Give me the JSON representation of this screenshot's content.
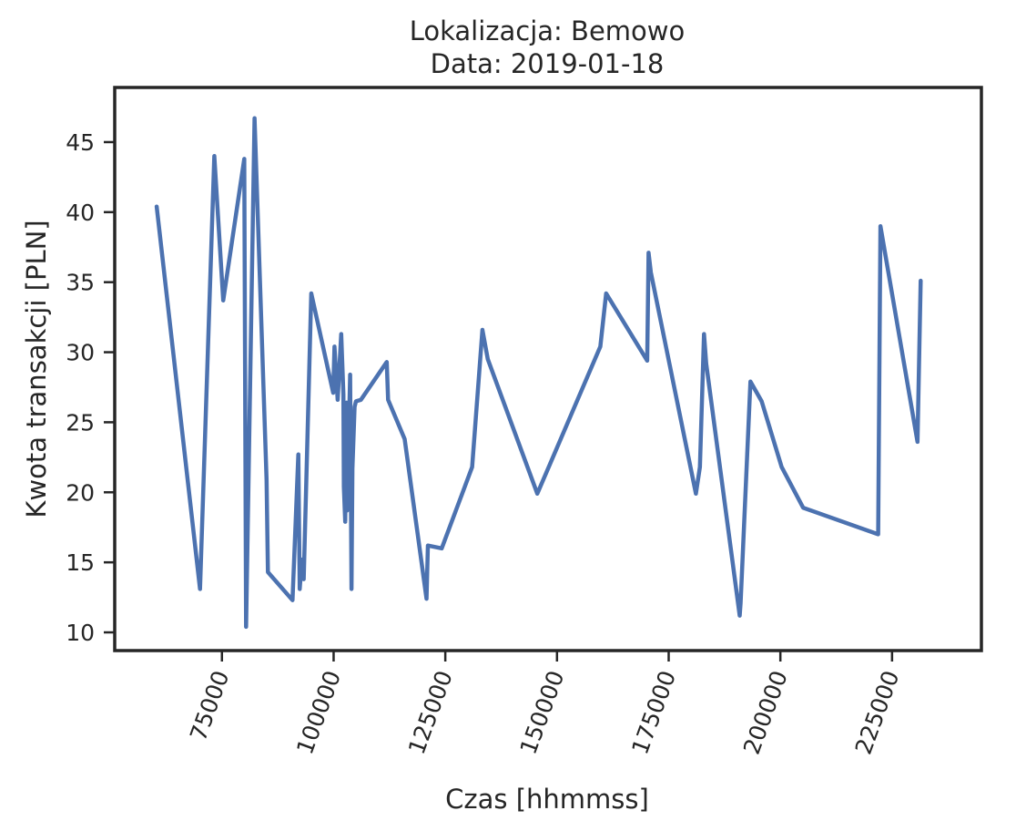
{
  "chart_data": {
    "type": "line",
    "title": "Lokalizacja: Bemowo",
    "subtitle": "Data: 2019-01-18",
    "xlabel": "Czas [hhmmss]",
    "ylabel": "Kwota transakcji [PLN]",
    "xlim": [
      51000,
      245000
    ],
    "ylim": [
      8.7,
      48.9
    ],
    "xticks": [
      75000,
      100000,
      125000,
      150000,
      175000,
      200000,
      225000
    ],
    "yticks": [
      10,
      15,
      20,
      25,
      30,
      35,
      40,
      45
    ],
    "grid": false,
    "legend": "none",
    "color": "#4c72b0",
    "series": [
      {
        "x": [
          60400,
          70100,
          73300,
          75300,
          80000,
          80400,
          82300,
          85000,
          85300,
          90800,
          92100,
          92400,
          92900,
          93300,
          95000,
          99900,
          100200,
          100900,
          101700,
          102200,
          102300,
          102600,
          102900,
          103000,
          103700,
          104000,
          104200,
          104700,
          105000,
          106100,
          111900,
          112200,
          115900,
          120800,
          121100,
          124200,
          131000,
          133300,
          134500,
          145600,
          159700,
          161000,
          170200,
          170500,
          171000,
          181100,
          182000,
          182900,
          183400,
          190900,
          191100,
          193300,
          195800,
          200300,
          205100,
          221900,
          222400,
          230700,
          231400
        ],
        "y": [
          40.4,
          13.1,
          44.0,
          33.7,
          43.8,
          10.4,
          46.7,
          20.9,
          14.3,
          12.3,
          22.7,
          13.1,
          15.2,
          13.8,
          34.2,
          27.1,
          30.4,
          26.6,
          31.3,
          27.0,
          20.4,
          17.9,
          26.4,
          18.7,
          28.4,
          13.1,
          21.7,
          26.1,
          26.5,
          26.6,
          29.3,
          26.6,
          23.8,
          12.4,
          16.2,
          16.0,
          21.8,
          31.6,
          29.5,
          19.9,
          30.4,
          34.2,
          29.4,
          37.1,
          35.7,
          19.9,
          21.8,
          31.3,
          29.2,
          11.2,
          12.1,
          27.9,
          26.5,
          21.8,
          18.9,
          17.0,
          39.0,
          23.6,
          35.1
        ]
      }
    ]
  }
}
